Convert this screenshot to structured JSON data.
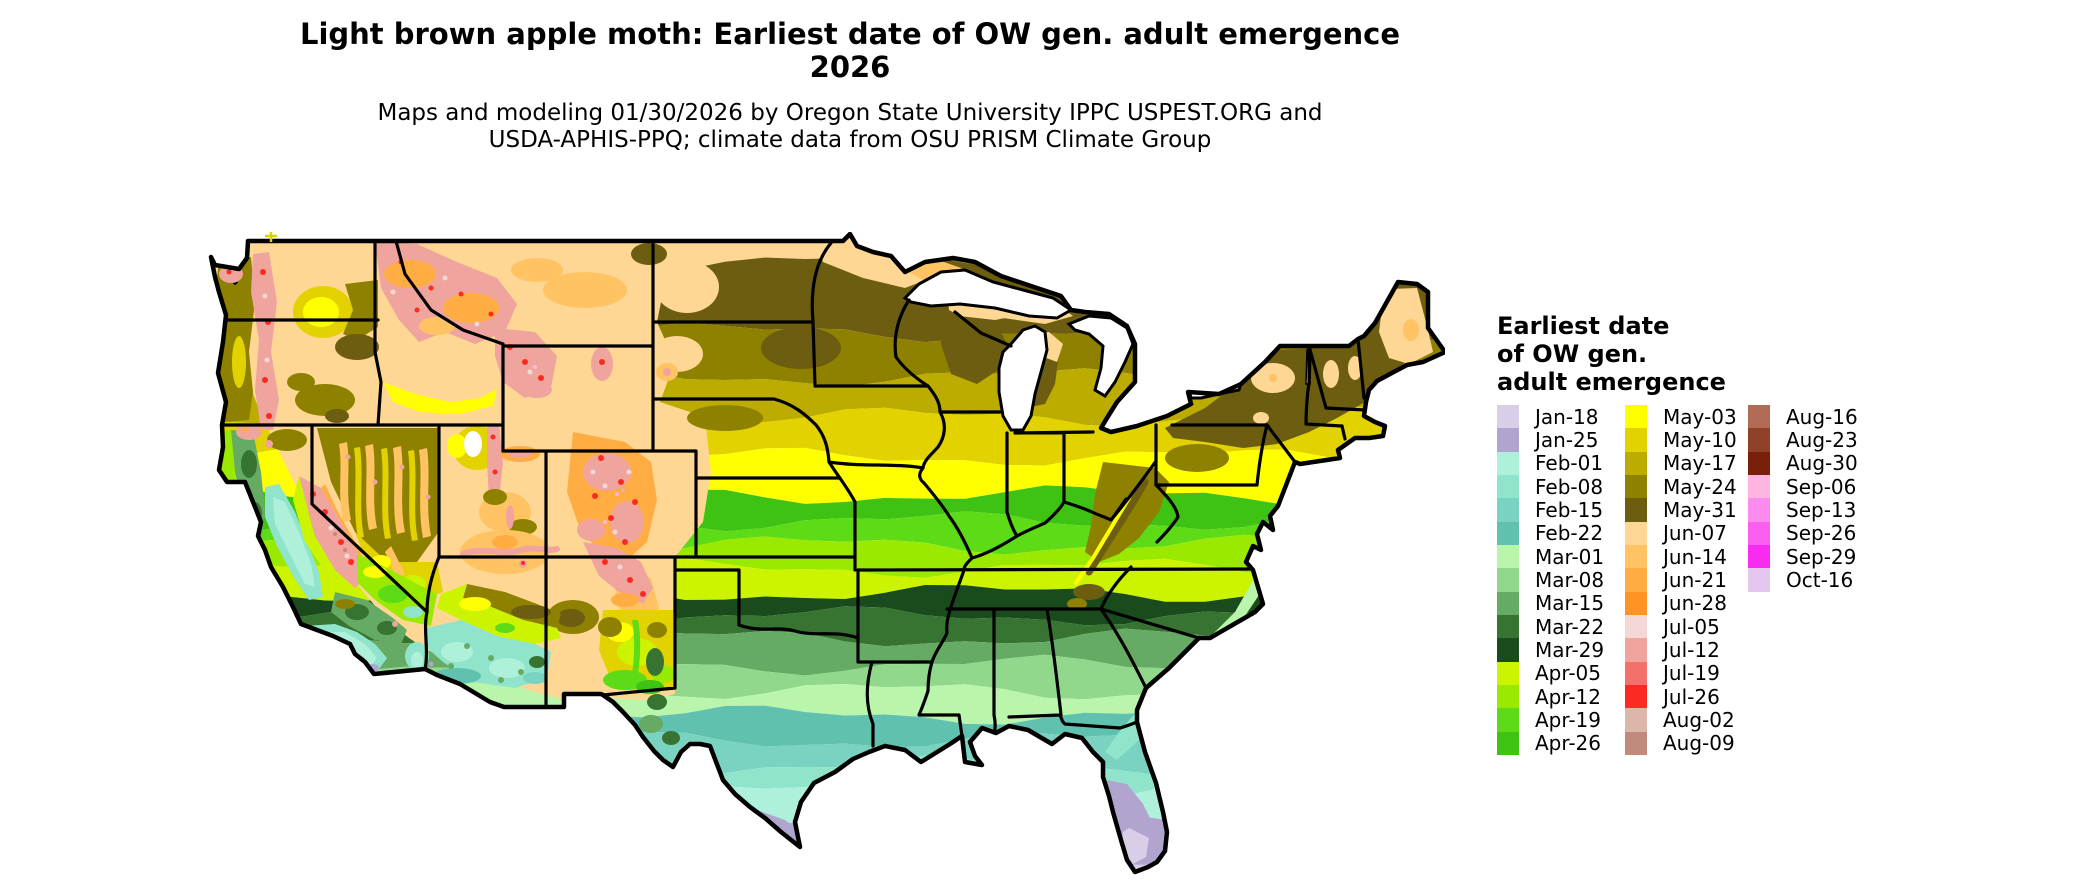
{
  "title": {
    "line1": "Light brown apple moth: Earliest date of OW gen. adult emergence",
    "line2": "2026"
  },
  "subtitle": {
    "line1": "Maps and modeling 01/30/2026 by Oregon State University IPPC USPEST.ORG and",
    "line2": "USDA-APHIS-PPQ; climate data from OSU PRISM Climate Group"
  },
  "legend": {
    "title_lines": [
      "Earliest date",
      "of OW gen.",
      "adult emergence"
    ],
    "columns": [
      [
        "Jan-18",
        "Jan-25",
        "Feb-01",
        "Feb-08",
        "Feb-15",
        "Feb-22",
        "Mar-01",
        "Mar-08",
        "Mar-15",
        "Mar-22",
        "Mar-29",
        "Apr-05",
        "Apr-12",
        "Apr-19",
        "Apr-26"
      ],
      [
        "May-03",
        "May-10",
        "May-17",
        "May-24",
        "May-31",
        "Jun-07",
        "Jun-14",
        "Jun-21",
        "Jun-28",
        "Jul-05",
        "Jul-12",
        "Jul-19",
        "Jul-26",
        "Aug-02",
        "Aug-09"
      ],
      [
        "Aug-16",
        "Aug-23",
        "Aug-30",
        "Sep-06",
        "Sep-13",
        "Sep-26",
        "Sep-29",
        "Oct-16"
      ]
    ]
  },
  "palette": {
    "Jan-18": "#D8CEE8",
    "Jan-25": "#B1A5D0",
    "Feb-01": "#AFF0DA",
    "Feb-08": "#90E4CC",
    "Feb-15": "#7AD2C0",
    "Feb-22": "#60C2AE",
    "Mar-01": "#B9F5AB",
    "Mar-08": "#92D88C",
    "Mar-15": "#66AB63",
    "Mar-22": "#387431",
    "Mar-29": "#1A4B1C",
    "Apr-05": "#CCF400",
    "Apr-12": "#99EA00",
    "Apr-19": "#5CDB16",
    "Apr-26": "#3EC314",
    "May-03": "#FFFF00",
    "May-10": "#E1D200",
    "May-17": "#BCAC00",
    "May-24": "#8F8100",
    "May-31": "#6C5D10",
    "Jun-07": "#FFD795",
    "Jun-14": "#FFC364",
    "Jun-21": "#FFAD42",
    "Jun-28": "#FF9425",
    "Jul-05": "#F3D8D5",
    "Jul-12": "#EFA49D",
    "Jul-19": "#F4716B",
    "Jul-26": "#FB2B22",
    "Aug-02": "#DCB6AB",
    "Aug-09": "#C08A7D",
    "Aug-16": "#B16A55",
    "Aug-23": "#8E4126",
    "Aug-30": "#78200A",
    "Sep-06": "#FFB5E0",
    "Sep-13": "#FB8BEE",
    "Sep-26": "#FB5FF0",
    "Sep-29": "#FA2BF0",
    "Oct-16": "#E5C6EF"
  },
  "map": {
    "region": "Continental United States",
    "kind": "raster choropleth of earliest overwintering-generation adult emergence date"
  }
}
